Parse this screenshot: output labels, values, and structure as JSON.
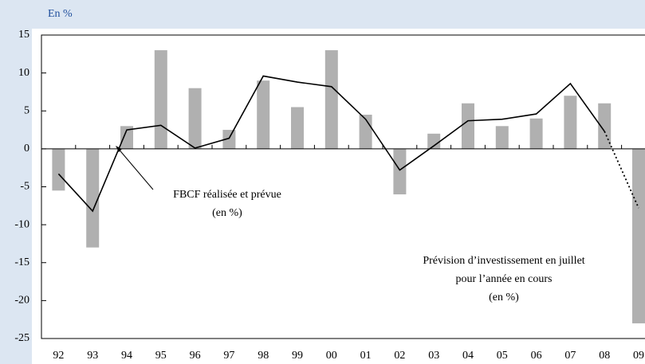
{
  "chart_data": {
    "type": "bar_line",
    "unit_label": "En %",
    "categories": [
      "92",
      "93",
      "94",
      "95",
      "96",
      "97",
      "98",
      "99",
      "00",
      "01",
      "02",
      "03",
      "04",
      "05",
      "06",
      "07",
      "08",
      "09"
    ],
    "series": [
      {
        "kind": "bar",
        "color": "#b0b0b0",
        "values": [
          -5.5,
          -13,
          3,
          13,
          8,
          2.5,
          9,
          5.5,
          13,
          4.5,
          -6,
          2,
          6,
          3,
          4,
          7,
          6,
          -23
        ]
      },
      {
        "kind": "line",
        "color": "#000000",
        "dotted_last_segment": true,
        "values": [
          -3.3,
          -8.2,
          2.5,
          3.1,
          0.1,
          1.4,
          9.6,
          8.8,
          8.2,
          3.9,
          -2.8,
          0.4,
          3.7,
          3.9,
          4.6,
          8.6,
          2.3,
          -7.8
        ]
      }
    ],
    "ylim": [
      -25,
      15
    ],
    "yticks": [
      15,
      10,
      5,
      0,
      -5,
      -10,
      -15,
      -20,
      -25
    ],
    "annotations": [
      {
        "lines": [
          "FBCF réalisée et prévue",
          "(en %)"
        ]
      },
      {
        "lines": [
          "Prévision d’investissement en juillet",
          "pour l’année en cours",
          "(en  %)"
        ]
      }
    ]
  }
}
